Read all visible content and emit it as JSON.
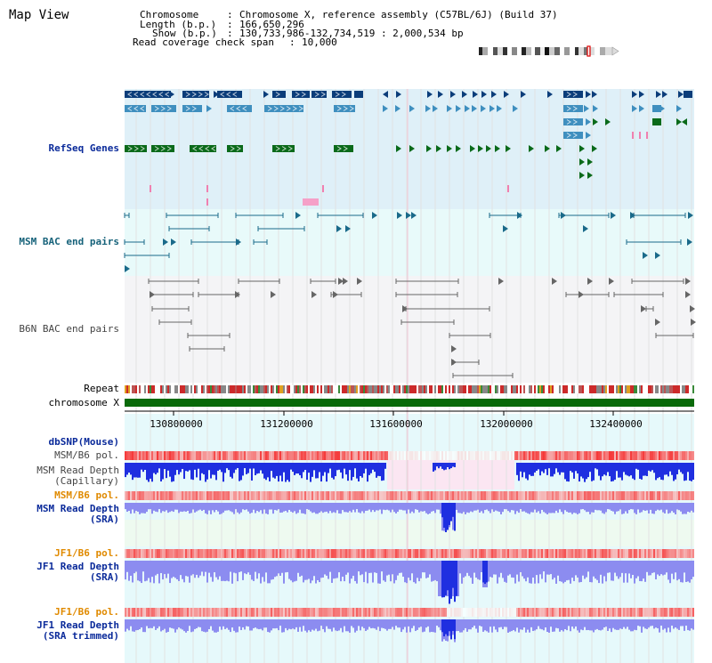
{
  "page": {
    "title": "Map View"
  },
  "info": {
    "chromosome_label": "Chromosome",
    "chromosome_value": "Chromosome X, reference assembly (C57BL/6J) (Build 37)",
    "length_label": "Length (b.p.)",
    "length_value": "166,650,296",
    "show_label": "Show (b.p.)",
    "show_value": "130,733,986-132,734,519 : 2,000,534 bp",
    "coverage_label": "Read coverage check span",
    "coverage_value": "10,000"
  },
  "tracks": {
    "refseq": "RefSeq Genes",
    "msm_bac": "MSM BAC end pairs",
    "b6n_bac": "B6N BAC end pairs",
    "repeat": "Repeat",
    "chromosome": "chromosome X",
    "dbsnp": "dbSNP(Mouse)",
    "msm_b6_pol_1": "MSM/B6 pol.",
    "msm_read_depth_cap_1": "MSM Read Depth",
    "msm_read_depth_cap_2": "(Capillary)",
    "msm_b6_pol_2": "MSM/B6 pol.",
    "msm_read_depth_sra_1": "MSM Read Depth",
    "msm_read_depth_sra_2": "(SRA)",
    "jf1_b6_pol_1": "JF1/B6 pol.",
    "jf1_read_depth_sra_1": "JF1 Read Depth",
    "jf1_read_depth_sra_2": "(SRA)",
    "jf1_b6_pol_2": "JF1/B6 pol.",
    "jf1_read_depth_trim_1": "JF1 Read Depth",
    "jf1_read_depth_trim_2": "(SRA trimmed)"
  },
  "axis": {
    "ticks": [
      "130800000",
      "131200000",
      "131600000",
      "132000000",
      "132400000"
    ]
  },
  "colors": {
    "refseq_dark": "#0b3d7a",
    "refseq_mid": "#3f8fbf",
    "refseq_green": "#0a6a1a",
    "msm_bac": "#1a6a8a",
    "b6n_bac": "#666666",
    "chromosome_bar": "#0a6a0a",
    "depth_blue": "#1f2fe0",
    "depth_sra": "#8c8cf0"
  }
}
